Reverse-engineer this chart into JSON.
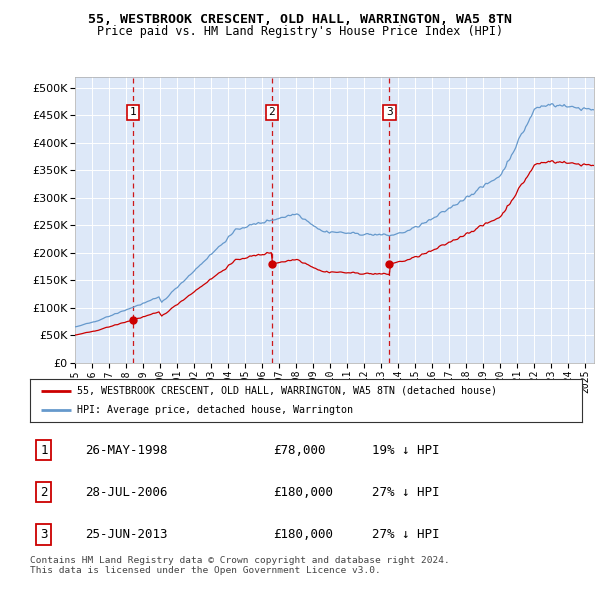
{
  "title1": "55, WESTBROOK CRESCENT, OLD HALL, WARRINGTON, WA5 8TN",
  "title2": "Price paid vs. HM Land Registry's House Price Index (HPI)",
  "background_color": "#dde8f8",
  "hpi_color": "#6699cc",
  "price_color": "#cc0000",
  "dashed_line_color": "#cc0000",
  "transactions": [
    {
      "label": "1",
      "date_str": "26-MAY-1998",
      "date_x": 1998.4,
      "price": 78000
    },
    {
      "label": "2",
      "date_str": "28-JUL-2006",
      "date_x": 2006.57,
      "price": 180000
    },
    {
      "label": "3",
      "date_str": "25-JUN-2013",
      "date_x": 2013.48,
      "price": 180000
    }
  ],
  "legend_line1": "55, WESTBROOK CRESCENT, OLD HALL, WARRINGTON, WA5 8TN (detached house)",
  "legend_line2": "HPI: Average price, detached house, Warrington",
  "table_rows": [
    {
      "num": "1",
      "date": "26-MAY-1998",
      "price": "£78,000",
      "hpi": "19% ↓ HPI"
    },
    {
      "num": "2",
      "date": "28-JUL-2006",
      "price": "£180,000",
      "hpi": "27% ↓ HPI"
    },
    {
      "num": "3",
      "date": "25-JUN-2013",
      "price": "£180,000",
      "hpi": "27% ↓ HPI"
    }
  ],
  "footer": "Contains HM Land Registry data © Crown copyright and database right 2024.\nThis data is licensed under the Open Government Licence v3.0.",
  "ylim": [
    0,
    520000
  ],
  "yticks": [
    0,
    50000,
    100000,
    150000,
    200000,
    250000,
    300000,
    350000,
    400000,
    450000,
    500000
  ],
  "xlim_start": 1995.0,
  "xlim_end": 2025.5,
  "xtick_years": [
    1995,
    1996,
    1997,
    1998,
    1999,
    2000,
    2001,
    2002,
    2003,
    2004,
    2005,
    2006,
    2007,
    2008,
    2009,
    2010,
    2011,
    2012,
    2013,
    2014,
    2015,
    2016,
    2017,
    2018,
    2019,
    2020,
    2021,
    2022,
    2023,
    2024,
    2025
  ]
}
